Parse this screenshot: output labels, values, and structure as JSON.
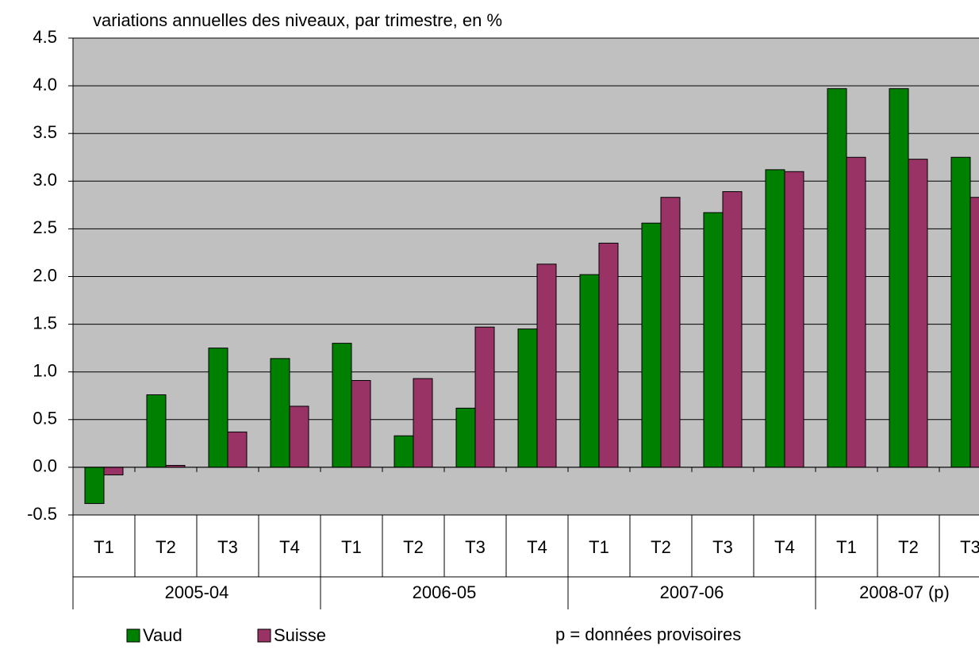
{
  "chart_data": {
    "type": "bar",
    "title": "variations annuelles des niveaux, par trimestre, en %",
    "note": "p = données provisoires",
    "categories": [
      "T1",
      "T2",
      "T3",
      "T4",
      "T1",
      "T2",
      "T3",
      "T4",
      "T1",
      "T2",
      "T3",
      "T4",
      "T1",
      "T2",
      "T3"
    ],
    "category_groups": [
      "2005-04",
      "2006-05",
      "2007-06",
      "2008-07 (p)"
    ],
    "series": [
      {
        "name": "Vaud",
        "color": "#008000",
        "values": [
          -0.38,
          0.76,
          1.25,
          1.14,
          1.3,
          0.33,
          0.62,
          1.45,
          2.02,
          2.56,
          2.67,
          3.12,
          3.97,
          3.97,
          3.25
        ]
      },
      {
        "name": "Suisse",
        "color": "#993366",
        "values": [
          -0.08,
          0.02,
          0.37,
          0.64,
          0.91,
          0.93,
          1.47,
          2.13,
          2.35,
          2.83,
          2.89,
          3.1,
          3.25,
          3.23,
          2.83
        ]
      }
    ],
    "ylim": [
      -0.5,
      4.5
    ],
    "yticks": [
      4.5,
      {
        "value": 4,
        "label": "4.0"
      },
      3.5,
      {
        "value": 3,
        "label": "3.0"
      },
      2.5,
      {
        "value": 2,
        "label": "2.0"
      },
      1.5,
      {
        "value": 1,
        "label": "1.0"
      },
      0.5,
      {
        "value": 0,
        "label": "0.0"
      },
      -0.5
    ],
    "grid": true,
    "background": "#c0c0c0"
  }
}
